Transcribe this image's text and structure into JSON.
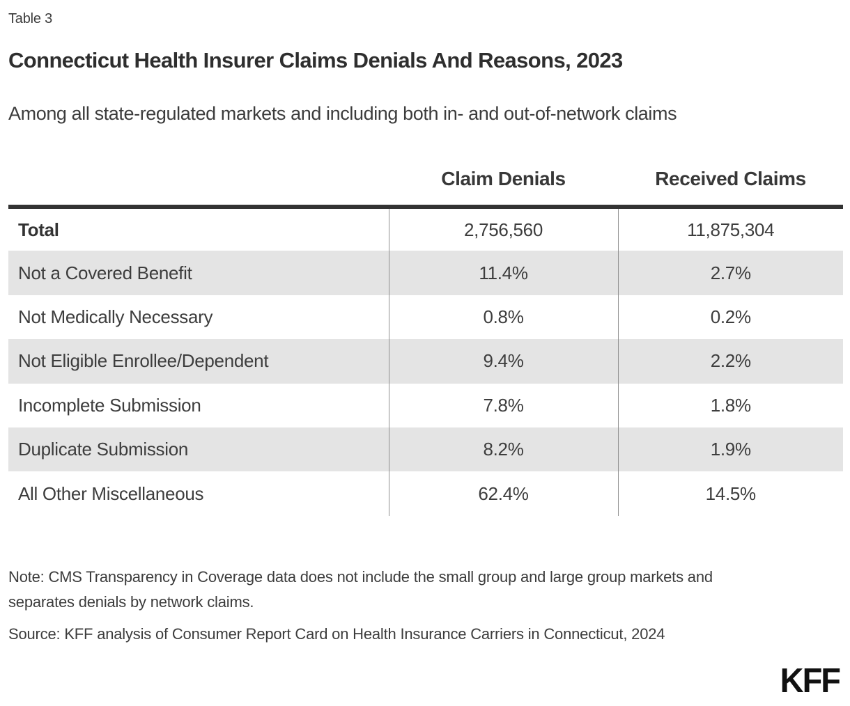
{
  "table_label": "Table 3",
  "title": "Connecticut Health Insurer Claims Denials And Reasons, 2023",
  "subtitle": "Among all state-regulated markets and including both in- and out-of-network claims",
  "table": {
    "columns": [
      "",
      "Claim Denials",
      "Received Claims"
    ],
    "rows": [
      {
        "label": "Total",
        "values": [
          "2,756,560",
          "11,875,304"
        ]
      },
      {
        "label": "Not a Covered Benefit",
        "values": [
          "11.4%",
          "2.7%"
        ]
      },
      {
        "label": "Not Medically Necessary",
        "values": [
          "0.8%",
          "0.2%"
        ]
      },
      {
        "label": "Not Eligible Enrollee/Dependent",
        "values": [
          "9.4%",
          "2.2%"
        ]
      },
      {
        "label": "Incomplete Submission",
        "values": [
          "7.8%",
          "1.8%"
        ]
      },
      {
        "label": "Duplicate Submission",
        "values": [
          "8.2%",
          "1.9%"
        ]
      },
      {
        "label": "All Other Miscellaneous",
        "values": [
          "62.4%",
          "14.5%"
        ]
      }
    ]
  },
  "note": "Note: CMS Transparency in Coverage data does not include the small group and large group markets and separates denials by network claims.",
  "source": "Source: KFF analysis of Consumer Report Card on Health Insurance Carriers in Connecticut, 2024",
  "logo": "KFF",
  "colors": {
    "stripe": "#e4e4e4",
    "rule": "#333333",
    "divider": "#8f8f8f",
    "text": "#3d3d3d",
    "logo": "#111111"
  },
  "chart_data": {
    "type": "table",
    "title": "Connecticut Health Insurer Claims Denials And Reasons, 2023",
    "subtitle": "Among all state-regulated markets and including both in- and out-of-network claims",
    "columns": [
      "Claim Denials",
      "Received Claims"
    ],
    "rows": [
      [
        "Total",
        "2,756,560",
        "11,875,304"
      ],
      [
        "Not a Covered Benefit",
        "11.4%",
        "2.7%"
      ],
      [
        "Not Medically Necessary",
        "0.8%",
        "0.2%"
      ],
      [
        "Not Eligible Enrollee/Dependent",
        "9.4%",
        "2.2%"
      ],
      [
        "Incomplete Submission",
        "7.8%",
        "1.8%"
      ],
      [
        "Duplicate Submission",
        "8.2%",
        "1.9%"
      ],
      [
        "All Other Miscellaneous",
        "62.4%",
        "14.5%"
      ]
    ],
    "notes": [
      "Note: CMS Transparency in Coverage data does not include the small group and large group markets and separates denials by network claims.",
      "Source: KFF analysis of Consumer Report Card on Health Insurance Carriers in Connecticut, 2024"
    ]
  }
}
